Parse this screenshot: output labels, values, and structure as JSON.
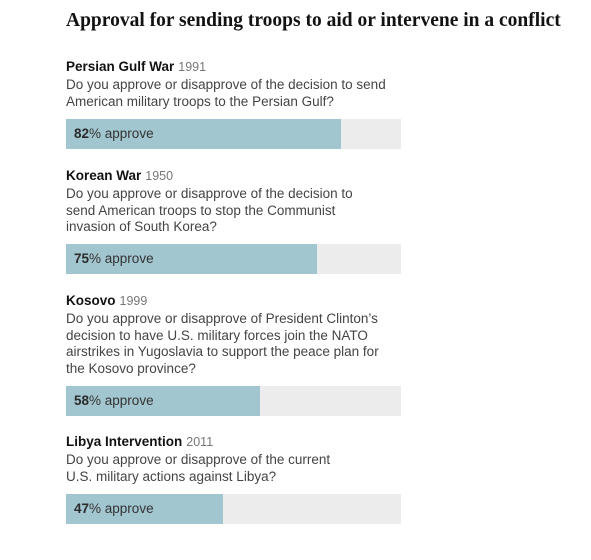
{
  "chart_data": {
    "type": "bar",
    "orientation": "horizontal",
    "title": "Approval for sending troops to aid or intervene in a conflict",
    "xlim": [
      0,
      100
    ],
    "unit_suffix": "% approve",
    "items": [
      {
        "name": "Persian Gulf War",
        "year": "1991",
        "question": "Do you approve or disapprove of the decision to send American military troops to the Persian Gulf?",
        "value": 82
      },
      {
        "name": "Korean War",
        "year": "1950",
        "question": "Do you approve or disapprove of the decision to send American troops to stop the Communist invasion of South Korea?",
        "value": 75
      },
      {
        "name": "Kosovo",
        "year": "1999",
        "question": "Do you approve or disapprove of President Clinton’s decision to have U.S. military forces join the NATO airstrikes in Yugoslavia to support the peace plan for the Kosovo province?",
        "value": 58
      },
      {
        "name": "Libya Intervention",
        "year": "2011",
        "question": "Do you approve or disapprove of the current U.S. military actions against Libya?",
        "value": 47
      }
    ],
    "colors": {
      "bar": "#a2c6cf",
      "track": "#ececec"
    }
  }
}
